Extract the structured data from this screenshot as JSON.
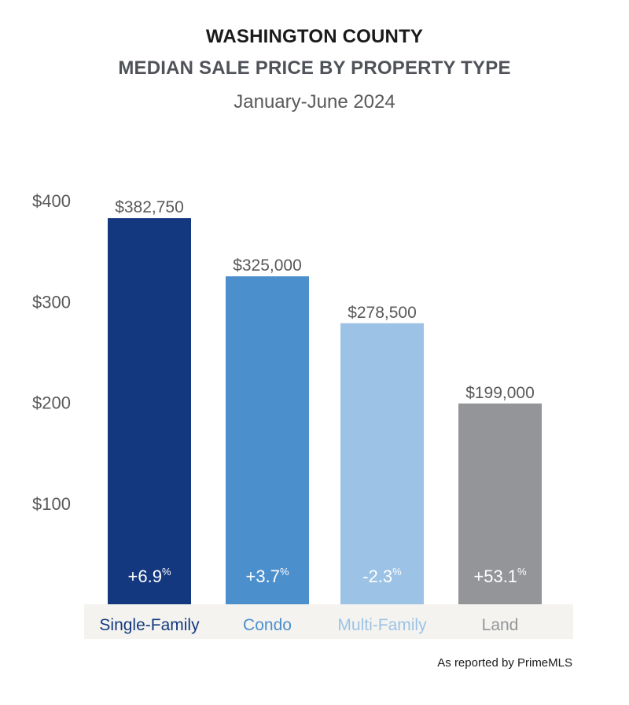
{
  "header": {
    "title_line1": "WASHINGTON COUNTY",
    "title_line2": "MEDIAN SALE PRICE BY PROPERTY TYPE",
    "subtitle": "January-June 2024"
  },
  "footer": {
    "source": "As reported by PrimeMLS"
  },
  "chart_data": {
    "type": "bar",
    "title": "WASHINGTON COUNTY MEDIAN SALE PRICE BY PROPERTY TYPE",
    "subtitle": "January-June 2024",
    "categories": [
      "Single-Family",
      "Condo",
      "Multi-Family",
      "Land"
    ],
    "values": [
      382750,
      325000,
      278500,
      199000
    ],
    "value_labels": [
      "$382,750",
      "$325,000",
      "$278,500",
      "$199,000"
    ],
    "changes": [
      "+6.9",
      "+3.7",
      "-2.3",
      "+53.1"
    ],
    "change_unit": "%",
    "colors": [
      "#14387f",
      "#4b8fcd",
      "#9cc3e5",
      "#939598"
    ],
    "category_label_colors": [
      "#14387f",
      "#4b8fcd",
      "#9cc3e5",
      "#939598"
    ],
    "yticks": [
      100,
      200,
      300,
      400
    ],
    "ytick_labels": [
      "$100",
      "$200",
      "$300",
      "$400"
    ],
    "ylim": [
      0,
      400
    ],
    "grid": false,
    "category_band_color": "#f4f3ef"
  }
}
